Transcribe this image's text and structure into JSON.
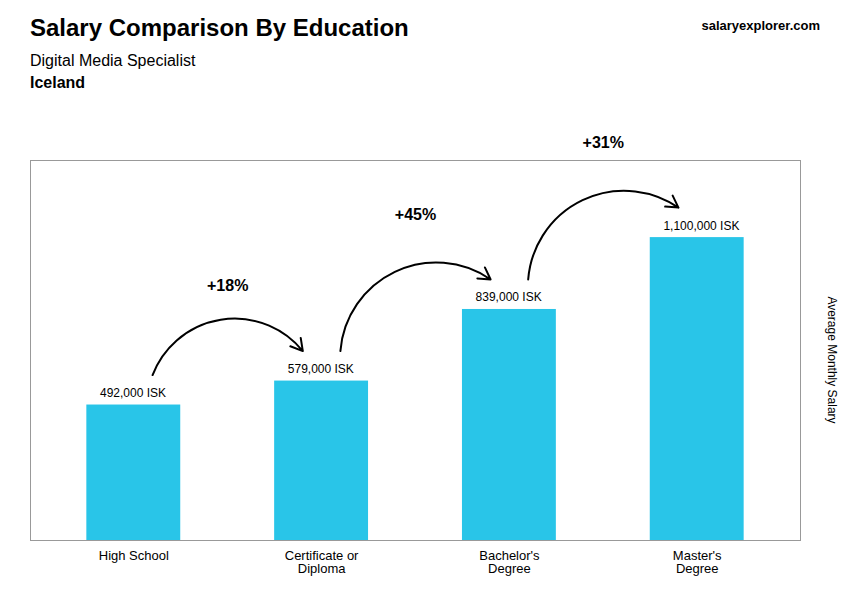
{
  "chart_data": {
    "type": "bar",
    "title": "Salary Comparison By Education",
    "subtitle": [
      "Digital Media Specialist",
      "Iceland"
    ],
    "watermark": "salaryexplorer.com",
    "ylabel": "Average Monthly Salary",
    "categories": [
      "High School",
      "Certificate or\nDiploma",
      "Bachelor's\nDegree",
      "Master's\nDegree"
    ],
    "values": [
      492000,
      579000,
      839000,
      1100000
    ],
    "value_labels": [
      "492,000 ISK",
      "579,000 ISK",
      "839,000 ISK",
      "1,100,000 ISK"
    ],
    "data_labels": true,
    "color": "#29c5e8",
    "ylim": [
      0,
      1380000
    ],
    "tick_labels": "x",
    "grid": false,
    "annotations": [
      {
        "text": "+18%",
        "from": "High School",
        "to": "Certificate or\nDiploma"
      },
      {
        "text": "+45%",
        "from": "Certificate or\nDiploma",
        "to": "Bachelor's\nDegree"
      },
      {
        "text": "+31%",
        "from": "Bachelor's\nDegree",
        "to": "Master's\nDegree"
      }
    ]
  }
}
